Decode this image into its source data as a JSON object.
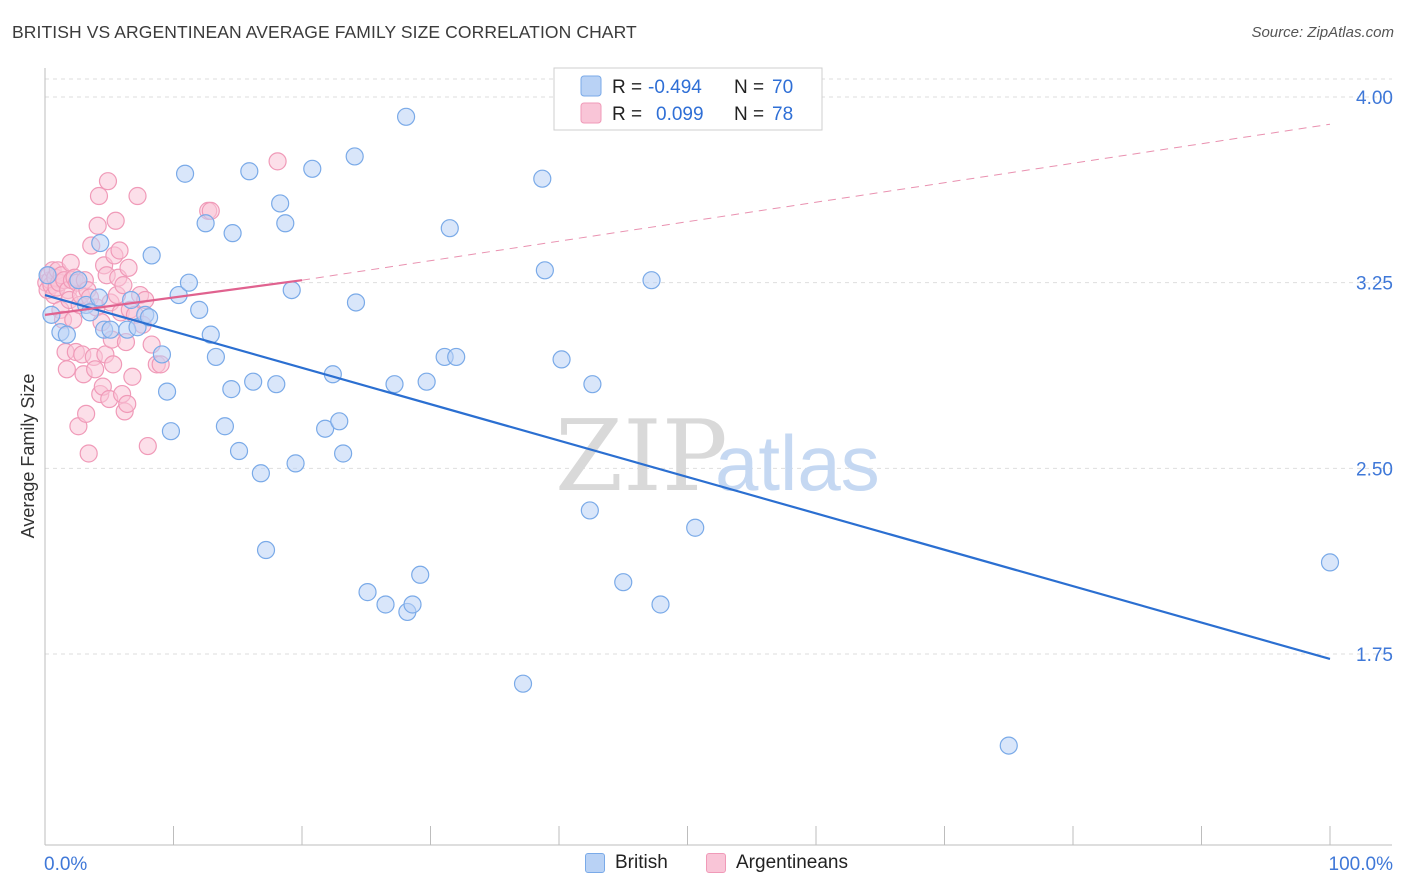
{
  "chart_data": {
    "type": "scatter",
    "title": "BRITISH VS ARGENTINEAN AVERAGE FAMILY SIZE CORRELATION CHART",
    "source": "Source: ZipAtlas.com",
    "ylabel": "Average Family Size",
    "xlabel": "",
    "xlim": [
      0,
      100
    ],
    "ylim": [
      1.0,
      4.2
    ],
    "y_ticks": [
      {
        "value": 4.0,
        "label": "4.00"
      },
      {
        "value": 3.25,
        "label": "3.25"
      },
      {
        "value": 2.5,
        "label": "2.50"
      },
      {
        "value": 1.75,
        "label": "1.75"
      }
    ],
    "x_tick_labels": {
      "min": "0.0%",
      "max": "100.0%"
    },
    "watermark": {
      "zip": "ZIP",
      "atlas": "atlas"
    },
    "legend_stats": [
      {
        "series": "British",
        "r_label": "R =",
        "r_value": "-0.494",
        "n_label": "N =",
        "n_value": "70"
      },
      {
        "series": "Argentineans",
        "r_label": "R =",
        "r_value": "0.099",
        "n_label": "N =",
        "n_value": "78"
      }
    ],
    "series": [
      {
        "name": "British",
        "color": "#7aaae8",
        "fill": "#b9d2f5",
        "trend": {
          "x0": 0,
          "y0": 3.2,
          "x1": 100,
          "y1": 1.73,
          "color": "#2b6fd1"
        },
        "points": [
          [
            0.2,
            3.28
          ],
          [
            0.5,
            3.12
          ],
          [
            1.2,
            3.05
          ],
          [
            1.7,
            3.04
          ],
          [
            2.6,
            3.26
          ],
          [
            3.2,
            3.16
          ],
          [
            3.5,
            3.13
          ],
          [
            4.2,
            3.19
          ],
          [
            4.3,
            3.41
          ],
          [
            4.6,
            3.06
          ],
          [
            5.1,
            3.06
          ],
          [
            6.4,
            3.06
          ],
          [
            6.7,
            3.18
          ],
          [
            7.2,
            3.07
          ],
          [
            7.8,
            3.12
          ],
          [
            8.1,
            3.11
          ],
          [
            8.3,
            3.36
          ],
          [
            9.1,
            2.96
          ],
          [
            9.5,
            2.81
          ],
          [
            9.8,
            2.65
          ],
          [
            10.4,
            3.2
          ],
          [
            10.9,
            3.69
          ],
          [
            11.2,
            3.25
          ],
          [
            12.0,
            3.14
          ],
          [
            12.5,
            3.49
          ],
          [
            12.9,
            3.04
          ],
          [
            13.3,
            2.95
          ],
          [
            14.0,
            2.67
          ],
          [
            14.5,
            2.82
          ],
          [
            14.6,
            3.45
          ],
          [
            15.1,
            2.57
          ],
          [
            15.9,
            3.7
          ],
          [
            16.2,
            2.85
          ],
          [
            16.8,
            2.48
          ],
          [
            17.2,
            2.17
          ],
          [
            18.0,
            2.84
          ],
          [
            18.3,
            3.57
          ],
          [
            18.7,
            3.49
          ],
          [
            19.2,
            3.22
          ],
          [
            19.5,
            2.52
          ],
          [
            20.8,
            3.71
          ],
          [
            21.8,
            2.66
          ],
          [
            22.4,
            2.88
          ],
          [
            22.9,
            2.69
          ],
          [
            23.2,
            2.56
          ],
          [
            24.1,
            3.76
          ],
          [
            24.2,
            3.17
          ],
          [
            25.1,
            2.0
          ],
          [
            26.5,
            1.95
          ],
          [
            27.2,
            2.84
          ],
          [
            28.1,
            3.92
          ],
          [
            28.2,
            1.92
          ],
          [
            28.6,
            1.95
          ],
          [
            29.2,
            2.07
          ],
          [
            29.7,
            2.85
          ],
          [
            31.1,
            2.95
          ],
          [
            31.5,
            3.47
          ],
          [
            32.0,
            2.95
          ],
          [
            37.2,
            1.63
          ],
          [
            38.7,
            3.67
          ],
          [
            38.9,
            3.3
          ],
          [
            40.2,
            2.94
          ],
          [
            42.4,
            2.33
          ],
          [
            42.6,
            2.84
          ],
          [
            45.0,
            2.04
          ],
          [
            47.2,
            3.26
          ],
          [
            47.9,
            1.95
          ],
          [
            50.6,
            2.26
          ],
          [
            75.0,
            1.38
          ],
          [
            100.0,
            2.12
          ]
        ]
      },
      {
        "name": "Argentineans",
        "color": "#f09ab8",
        "fill": "#f9c5d7",
        "trend": {
          "x0": 0,
          "y0": 3.12,
          "x1": 20,
          "y1": 3.26,
          "color": "#e0628f",
          "dashed_to": {
            "x": 100,
            "y": 3.89
          }
        },
        "points": [
          [
            0.1,
            3.25
          ],
          [
            0.2,
            3.22
          ],
          [
            0.3,
            3.28
          ],
          [
            0.4,
            3.26
          ],
          [
            0.5,
            3.24
          ],
          [
            0.6,
            3.3
          ],
          [
            0.7,
            3.2
          ],
          [
            0.8,
            3.27
          ],
          [
            0.9,
            3.23
          ],
          [
            1.0,
            3.3
          ],
          [
            1.1,
            3.25
          ],
          [
            1.2,
            3.14
          ],
          [
            1.3,
            3.28
          ],
          [
            1.4,
            3.1
          ],
          [
            1.5,
            3.26
          ],
          [
            1.6,
            2.97
          ],
          [
            1.7,
            2.9
          ],
          [
            1.8,
            3.22
          ],
          [
            1.9,
            3.18
          ],
          [
            2.0,
            3.33
          ],
          [
            2.1,
            3.26
          ],
          [
            2.2,
            3.1
          ],
          [
            2.3,
            3.27
          ],
          [
            2.4,
            2.97
          ],
          [
            2.5,
            3.25
          ],
          [
            2.6,
            2.67
          ],
          [
            2.7,
            3.16
          ],
          [
            2.8,
            3.2
          ],
          [
            2.9,
            2.96
          ],
          [
            3.0,
            2.88
          ],
          [
            3.1,
            3.26
          ],
          [
            3.2,
            2.72
          ],
          [
            3.3,
            3.22
          ],
          [
            3.4,
            2.56
          ],
          [
            3.5,
            3.19
          ],
          [
            3.6,
            3.4
          ],
          [
            3.8,
            2.95
          ],
          [
            3.9,
            2.9
          ],
          [
            4.0,
            3.15
          ],
          [
            4.1,
            3.48
          ],
          [
            4.2,
            3.6
          ],
          [
            4.3,
            2.8
          ],
          [
            4.4,
            3.09
          ],
          [
            4.5,
            2.83
          ],
          [
            4.6,
            3.32
          ],
          [
            4.7,
            2.96
          ],
          [
            4.8,
            3.28
          ],
          [
            4.9,
            3.66
          ],
          [
            5.0,
            2.78
          ],
          [
            5.1,
            3.17
          ],
          [
            5.2,
            3.02
          ],
          [
            5.3,
            2.92
          ],
          [
            5.4,
            3.36
          ],
          [
            5.5,
            3.5
          ],
          [
            5.6,
            3.2
          ],
          [
            5.7,
            3.27
          ],
          [
            5.8,
            3.38
          ],
          [
            5.9,
            3.13
          ],
          [
            6.0,
            2.8
          ],
          [
            6.1,
            3.24
          ],
          [
            6.2,
            2.73
          ],
          [
            6.3,
            3.01
          ],
          [
            6.4,
            2.76
          ],
          [
            6.5,
            3.31
          ],
          [
            6.6,
            3.14
          ],
          [
            6.8,
            2.87
          ],
          [
            7.0,
            3.12
          ],
          [
            7.2,
            3.6
          ],
          [
            7.4,
            3.2
          ],
          [
            7.6,
            3.08
          ],
          [
            7.8,
            3.18
          ],
          [
            8.0,
            2.59
          ],
          [
            8.3,
            3.0
          ],
          [
            8.7,
            2.92
          ],
          [
            9.0,
            2.92
          ],
          [
            12.7,
            3.54
          ],
          [
            12.9,
            3.54
          ],
          [
            18.1,
            3.74
          ]
        ]
      }
    ]
  }
}
